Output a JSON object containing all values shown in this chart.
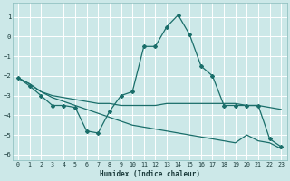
{
  "xlabel": "Humidex (Indice chaleur)",
  "bg_color": "#cce8e8",
  "line_color": "#1a6e6a",
  "grid_color": "#ffffff",
  "xlim": [
    -0.5,
    23.5
  ],
  "ylim": [
    -6.3,
    1.7
  ],
  "yticks": [
    1,
    0,
    -1,
    -2,
    -3,
    -4,
    -5,
    -6
  ],
  "xticks": [
    0,
    1,
    2,
    3,
    4,
    5,
    6,
    7,
    8,
    9,
    10,
    11,
    12,
    13,
    14,
    15,
    16,
    17,
    18,
    19,
    20,
    21,
    22,
    23
  ],
  "line1_x": [
    0,
    1,
    2,
    3,
    4,
    5,
    6,
    7,
    8,
    9,
    10,
    11,
    12,
    13,
    14,
    15,
    16,
    17,
    18,
    19,
    20,
    21,
    22,
    23
  ],
  "line1_y": [
    -2.1,
    -2.4,
    -2.8,
    -3.0,
    -3.1,
    -3.2,
    -3.3,
    -3.4,
    -3.4,
    -3.5,
    -3.5,
    -3.5,
    -3.5,
    -3.4,
    -3.4,
    -3.4,
    -3.4,
    -3.4,
    -3.4,
    -3.4,
    -3.5,
    -3.5,
    -3.6,
    -3.7
  ],
  "line2_x": [
    0,
    1,
    2,
    3,
    4,
    5,
    6,
    7,
    8,
    9,
    10,
    11,
    12,
    13,
    14,
    15,
    16,
    17,
    18,
    19,
    20,
    21,
    22,
    23
  ],
  "line2_y": [
    -2.1,
    -2.5,
    -3.0,
    -3.5,
    -3.5,
    -3.6,
    -4.8,
    -4.9,
    -3.8,
    -3.0,
    -2.8,
    -0.5,
    -0.5,
    0.5,
    1.1,
    0.1,
    -1.5,
    -2.0,
    -3.5,
    -3.5,
    -3.5,
    -3.5,
    -5.2,
    -5.6
  ],
  "line3_x": [
    0,
    1,
    2,
    3,
    4,
    5,
    6,
    7,
    8,
    9,
    10,
    11,
    12,
    13,
    14,
    15,
    16,
    17,
    18,
    19,
    20,
    21,
    22,
    23
  ],
  "line3_y": [
    -2.1,
    -2.4,
    -2.8,
    -3.1,
    -3.3,
    -3.5,
    -3.7,
    -3.9,
    -4.1,
    -4.3,
    -4.5,
    -4.6,
    -4.7,
    -4.8,
    -4.9,
    -5.0,
    -5.1,
    -5.2,
    -5.3,
    -5.4,
    -5.0,
    -5.3,
    -5.4,
    -5.7
  ]
}
